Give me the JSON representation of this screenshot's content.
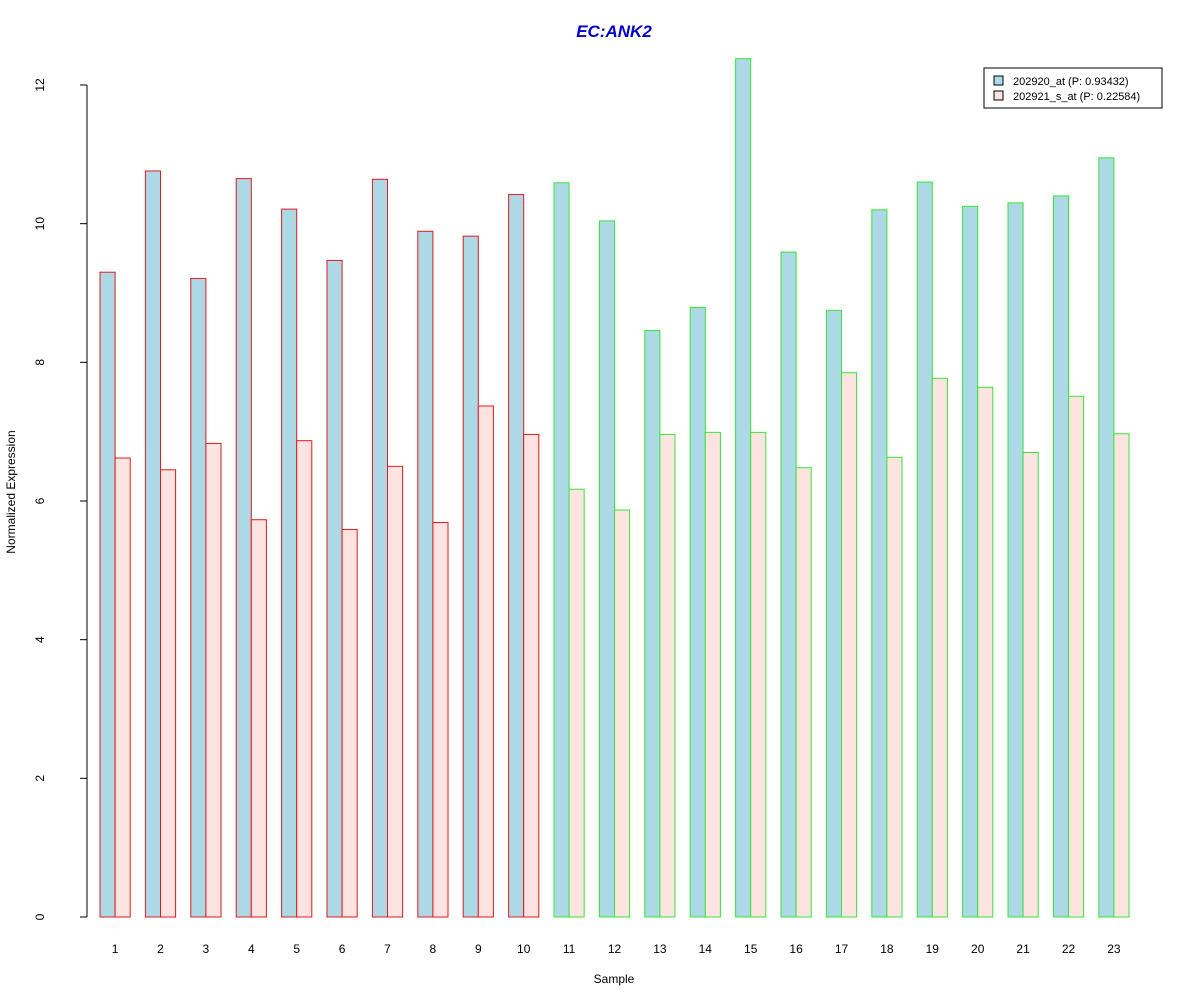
{
  "chart_data": {
    "type": "bar",
    "title": "EC:ANK2",
    "xlabel": "Sample",
    "ylabel": "Normalized Expression",
    "ylim": [
      0,
      12
    ],
    "yticks": [
      0,
      2,
      4,
      6,
      8,
      10,
      12
    ],
    "grid": false,
    "legend_position": "top-right",
    "categories": [
      "1",
      "2",
      "3",
      "4",
      "5",
      "6",
      "7",
      "8",
      "9",
      "10",
      "11",
      "12",
      "13",
      "14",
      "15",
      "16",
      "17",
      "18",
      "19",
      "20",
      "21",
      "22",
      "23"
    ],
    "series": [
      {
        "name": "202920_at (P: 0.93432)",
        "fill": "#add8e6",
        "values": [
          9.3,
          10.76,
          9.21,
          10.65,
          10.21,
          9.47,
          10.64,
          9.89,
          9.82,
          10.42,
          10.59,
          10.04,
          8.46,
          8.79,
          12.38,
          9.59,
          8.75,
          10.2,
          10.6,
          10.25,
          10.3,
          10.4,
          10.95
        ]
      },
      {
        "name": "202921_s_at (P: 0.22584)",
        "fill": "#fde4e1",
        "values": [
          6.62,
          6.45,
          6.83,
          5.73,
          6.87,
          5.59,
          6.5,
          5.69,
          7.37,
          6.96,
          6.17,
          5.87,
          6.96,
          6.99,
          6.99,
          6.48,
          7.85,
          6.63,
          7.77,
          7.64,
          6.7,
          7.51,
          6.97
        ]
      }
    ],
    "group_outline_colors": [
      "#e31a1c",
      "#e31a1c",
      "#e31a1c",
      "#e31a1c",
      "#e31a1c",
      "#e31a1c",
      "#e31a1c",
      "#e31a1c",
      "#e31a1c",
      "#e31a1c",
      "#33e833",
      "#33e833",
      "#33e833",
      "#33e833",
      "#33e833",
      "#33e833",
      "#33e833",
      "#33e833",
      "#33e833",
      "#33e833",
      "#33e833",
      "#33e833",
      "#33e833"
    ],
    "title_color": "#0000cd"
  }
}
